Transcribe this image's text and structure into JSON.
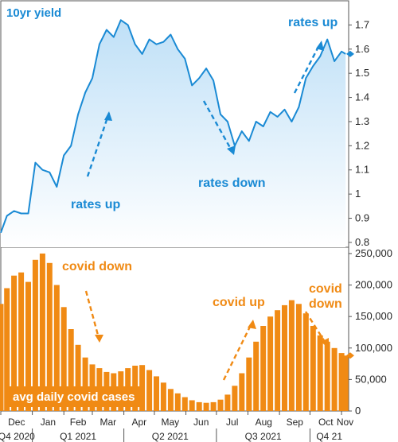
{
  "chart_data": [
    {
      "type": "area",
      "title": "10yr yield",
      "ylim": [
        0.78,
        1.8
      ],
      "yticks": [
        "1.7",
        "1.6",
        "1.5",
        "1.4",
        "1.3",
        "1.2",
        "1.1",
        "1",
        "0.9",
        "0.8"
      ],
      "ytick_values": [
        1.7,
        1.6,
        1.5,
        1.4,
        1.3,
        1.2,
        1.1,
        1.0,
        0.9,
        0.8
      ],
      "x_start": "2020-12-01",
      "x_end": "2021-11-08",
      "last_value": 1.58,
      "x": [
        "2020-12-01",
        "2020-12-07",
        "2020-12-14",
        "2020-12-21",
        "2020-12-28",
        "2021-01-04",
        "2021-01-11",
        "2021-01-18",
        "2021-01-25",
        "2021-02-01",
        "2021-02-08",
        "2021-02-15",
        "2021-02-22",
        "2021-03-01",
        "2021-03-08",
        "2021-03-15",
        "2021-03-22",
        "2021-03-29",
        "2021-04-05",
        "2021-04-12",
        "2021-04-19",
        "2021-04-26",
        "2021-05-03",
        "2021-05-10",
        "2021-05-17",
        "2021-05-24",
        "2021-05-31",
        "2021-06-07",
        "2021-06-14",
        "2021-06-21",
        "2021-06-28",
        "2021-07-05",
        "2021-07-12",
        "2021-07-19",
        "2021-07-26",
        "2021-08-02",
        "2021-08-09",
        "2021-08-16",
        "2021-08-23",
        "2021-08-30",
        "2021-09-06",
        "2021-09-13",
        "2021-09-20",
        "2021-09-27",
        "2021-10-04",
        "2021-10-11",
        "2021-10-18",
        "2021-10-25",
        "2021-11-01",
        "2021-11-05"
      ],
      "values": [
        0.84,
        0.91,
        0.93,
        0.92,
        0.92,
        1.13,
        1.1,
        1.09,
        1.03,
        1.16,
        1.2,
        1.33,
        1.42,
        1.48,
        1.62,
        1.68,
        1.65,
        1.72,
        1.7,
        1.62,
        1.58,
        1.64,
        1.62,
        1.63,
        1.66,
        1.6,
        1.56,
        1.45,
        1.48,
        1.52,
        1.47,
        1.33,
        1.3,
        1.2,
        1.26,
        1.22,
        1.3,
        1.28,
        1.34,
        1.32,
        1.35,
        1.3,
        1.36,
        1.48,
        1.53,
        1.57,
        1.64,
        1.55,
        1.59,
        1.58
      ],
      "annotations": [
        "rates up",
        "rates down",
        "rates up"
      ]
    },
    {
      "type": "bar",
      "title": "avg daily covid cases",
      "ylim": [
        0,
        260000
      ],
      "yticks": [
        "250,000",
        "200,000",
        "150,000",
        "100,000",
        "50,000",
        "0"
      ],
      "ytick_values": [
        250000,
        200000,
        150000,
        100000,
        50000,
        0
      ],
      "x_start": "2020-12-01",
      "x_end": "2021-11-08",
      "last_value": 88000,
      "x": [
        "2020-12-01",
        "2020-12-07",
        "2020-12-14",
        "2020-12-21",
        "2020-12-28",
        "2021-01-04",
        "2021-01-11",
        "2021-01-18",
        "2021-01-25",
        "2021-02-01",
        "2021-02-08",
        "2021-02-15",
        "2021-02-22",
        "2021-03-01",
        "2021-03-08",
        "2021-03-15",
        "2021-03-22",
        "2021-03-29",
        "2021-04-05",
        "2021-04-12",
        "2021-04-19",
        "2021-04-26",
        "2021-05-03",
        "2021-05-10",
        "2021-05-17",
        "2021-05-24",
        "2021-05-31",
        "2021-06-07",
        "2021-06-14",
        "2021-06-21",
        "2021-06-28",
        "2021-07-05",
        "2021-07-12",
        "2021-07-19",
        "2021-07-26",
        "2021-08-02",
        "2021-08-09",
        "2021-08-16",
        "2021-08-23",
        "2021-08-30",
        "2021-09-06",
        "2021-09-13",
        "2021-09-20",
        "2021-09-27",
        "2021-10-04",
        "2021-10-11",
        "2021-10-18",
        "2021-10-25",
        "2021-11-01",
        "2021-11-05"
      ],
      "values": [
        170000,
        195000,
        215000,
        220000,
        205000,
        240000,
        250000,
        235000,
        200000,
        165000,
        130000,
        105000,
        85000,
        74000,
        68000,
        62000,
        60000,
        63000,
        68000,
        72000,
        73000,
        65000,
        55000,
        45000,
        35000,
        28000,
        22000,
        17000,
        14000,
        13000,
        14000,
        18000,
        26000,
        40000,
        60000,
        85000,
        110000,
        135000,
        150000,
        160000,
        168000,
        176000,
        170000,
        155000,
        135000,
        120000,
        110000,
        100000,
        92000,
        88000
      ],
      "annotations": [
        "covid down",
        "covid up",
        "covid down"
      ]
    }
  ],
  "x_axis": {
    "months": [
      "Dec",
      "Jan",
      "Feb",
      "Mar",
      "Apr",
      "May",
      "Jun",
      "Jul",
      "Aug",
      "Sep",
      "Oct",
      "Nov"
    ],
    "quarters": [
      "Q4 2020",
      "Q1 2021",
      "Q2 2021",
      "Q3 2021",
      "Q4 21"
    ]
  },
  "colors": {
    "yield_line": "#1a8ad4",
    "yield_fill_top": "#bfe0f7",
    "cases_bar": "#f08a14",
    "axis": "#555555"
  }
}
